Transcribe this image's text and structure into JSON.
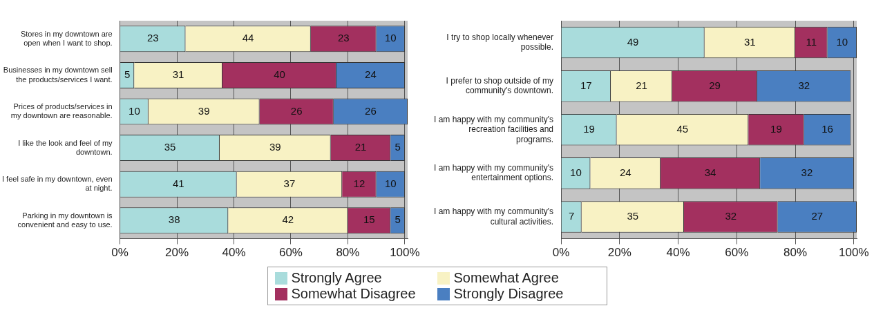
{
  "chart_data": [
    {
      "type": "bar",
      "orientation": "horizontal",
      "stacked": true,
      "data_labels": true,
      "grid": "x",
      "legend": "bottom",
      "categories": [
        "Stores in my downtown are open when I want to shop.",
        "Businesses in my downtown sell the products/services I want.",
        "Prices of products/services in my downtown are reasonable.",
        "I like the look and feel of my downtown.",
        "I feel safe in my downtown, even at night.",
        "Parking in my downtown is convenient and easy to use."
      ],
      "series": [
        {
          "name": "Strongly Agree",
          "color": "#a9dcdc",
          "values": [
            23,
            5,
            10,
            35,
            41,
            38
          ]
        },
        {
          "name": "Somewhat Agree",
          "color": "#f8f2c4",
          "values": [
            44,
            31,
            39,
            39,
            37,
            42
          ]
        },
        {
          "name": "Somewhat Disagree",
          "color": "#a3305f",
          "values": [
            23,
            40,
            26,
            21,
            12,
            15
          ]
        },
        {
          "name": "Strongly Disagree",
          "color": "#4a7fc1",
          "values": [
            10,
            24,
            26,
            5,
            10,
            5
          ]
        }
      ],
      "xlim": [
        0,
        101
      ],
      "xticks": [
        {
          "value": 0,
          "label": "0%"
        },
        {
          "value": 20,
          "label": "20%"
        },
        {
          "value": 40,
          "label": "40%"
        },
        {
          "value": 60,
          "label": "60%"
        },
        {
          "value": 80,
          "label": "80%"
        },
        {
          "value": 100,
          "label": "100%"
        }
      ]
    },
    {
      "type": "bar",
      "orientation": "horizontal",
      "stacked": true,
      "data_labels": true,
      "grid": "x",
      "legend": "bottom",
      "categories": [
        "I try to shop locally whenever possible.",
        "I prefer to shop outside of my community's downtown.",
        "I am happy with my community's recreation facilities and programs.",
        "I am happy with my community's entertainment options.",
        "I am happy with my community's cultural activities."
      ],
      "series": [
        {
          "name": "Strongly Agree",
          "color": "#a9dcdc",
          "values": [
            49,
            17,
            19,
            10,
            7
          ]
        },
        {
          "name": "Somewhat Agree",
          "color": "#f8f2c4",
          "values": [
            31,
            21,
            45,
            24,
            35
          ]
        },
        {
          "name": "Somewhat Disagree",
          "color": "#a3305f",
          "values": [
            11,
            29,
            19,
            34,
            32
          ]
        },
        {
          "name": "Strongly Disagree",
          "color": "#4a7fc1",
          "values": [
            10,
            32,
            16,
            32,
            27
          ]
        }
      ],
      "xlim": [
        0,
        101
      ],
      "xticks": [
        {
          "value": 0,
          "label": "0%"
        },
        {
          "value": 20,
          "label": "20%"
        },
        {
          "value": 40,
          "label": "40%"
        },
        {
          "value": 60,
          "label": "60%"
        },
        {
          "value": 80,
          "label": "80%"
        },
        {
          "value": 100,
          "label": "100%"
        }
      ]
    }
  ]
}
